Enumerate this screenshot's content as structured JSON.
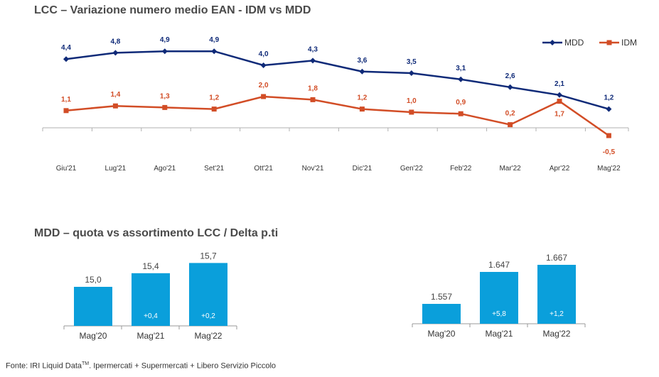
{
  "footer": {
    "source_prefix": "Fonte: IRI Liquid Data",
    "source_tm": "TM",
    "source_suffix": ". Ipermercati + Supermercati + Libero Servizio Piccolo"
  },
  "colors": {
    "mdd": "#0f2a78",
    "idm": "#d24d26",
    "bar": "#0a9fdb"
  },
  "chart_data": [
    {
      "type": "line",
      "title": "LCC – Variazione numero medio EAN - IDM vs MDD",
      "categories": [
        "Giu'21",
        "Lug'21",
        "Ago'21",
        "Set'21",
        "Ott'21",
        "Nov'21",
        "Dic'21",
        "Gen'22",
        "Feb'22",
        "Mar'22",
        "Apr'22",
        "Mag'22"
      ],
      "series": [
        {
          "name": "MDD",
          "values": [
            4.4,
            4.8,
            4.9,
            4.9,
            4.0,
            4.3,
            3.6,
            3.5,
            3.1,
            2.6,
            2.1,
            1.2
          ],
          "labels": [
            "4,4",
            "4,8",
            "4,9",
            "4,9",
            "4,0",
            "4,3",
            "3,6",
            "3,5",
            "3,1",
            "2,6",
            "2,1",
            "1,2"
          ]
        },
        {
          "name": "IDM",
          "values": [
            1.1,
            1.4,
            1.3,
            1.2,
            2.0,
            1.8,
            1.2,
            1.0,
            0.9,
            0.2,
            1.7,
            -0.5
          ],
          "labels": [
            "1,1",
            "1,4",
            "1,3",
            "1,2",
            "2,0",
            "1,8",
            "1,2",
            "1,0",
            "0,9",
            "0,2",
            "1,7",
            "-0,5"
          ]
        }
      ],
      "legend": "top-right",
      "grid": false
    },
    {
      "type": "bar",
      "title": "MDD – quota vs assortimento LCC / Delta p.ti",
      "categories": [
        "Mag'20",
        "Mag'21",
        "Mag'22"
      ],
      "values": [
        15.0,
        15.4,
        15.7
      ],
      "value_labels": [
        "15,0",
        "15,4",
        "15,7"
      ],
      "delta_labels": [
        "",
        "+0,4",
        "+0,2"
      ]
    },
    {
      "type": "bar",
      "categories": [
        "Mag'20",
        "Mag'21",
        "Mag'22"
      ],
      "values": [
        1557,
        1647,
        1667
      ],
      "value_labels": [
        "1.557",
        "1.647",
        "1.667"
      ],
      "delta_labels": [
        "",
        "+5,8",
        "+1,2"
      ]
    }
  ]
}
